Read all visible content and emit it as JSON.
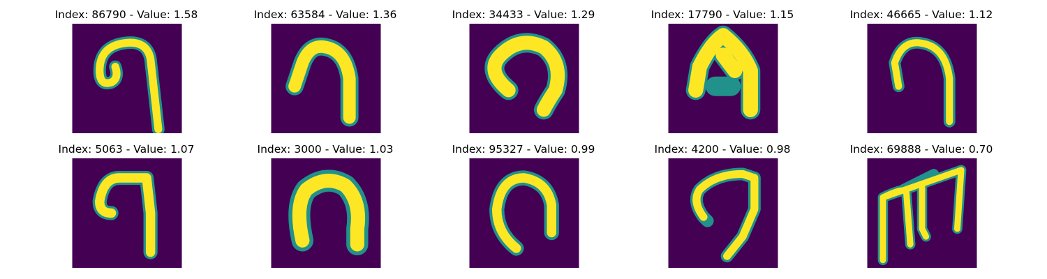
{
  "colors": {
    "background": "#440154",
    "stroke_core": "#fde725",
    "stroke_edge": "#21918c"
  },
  "panels": [
    {
      "title": "Index: 86790 - Value: 1.58",
      "glyph": "curl-hook"
    },
    {
      "title": "Index: 63584 - Value: 1.36",
      "glyph": "thick-hook"
    },
    {
      "title": "Index: 34433 - Value: 1.29",
      "glyph": "open-arch"
    },
    {
      "title": "Index: 17790 - Value: 1.15",
      "glyph": "pointed-arch"
    },
    {
      "title": "Index: 46665 - Value: 1.12",
      "glyph": "thin-hook"
    },
    {
      "title": "Index: 5063 - Value: 1.07",
      "glyph": "seven-hook"
    },
    {
      "title": "Index: 3000 - Value: 1.03",
      "glyph": "blurred-arch"
    },
    {
      "title": "Index: 95327 - Value: 0.99",
      "glyph": "narrow-arch"
    },
    {
      "title": "Index: 4200 - Value: 0.98",
      "glyph": "tail-hook"
    },
    {
      "title": "Index: 69888 - Value: 0.70",
      "glyph": "m-shape"
    }
  ]
}
